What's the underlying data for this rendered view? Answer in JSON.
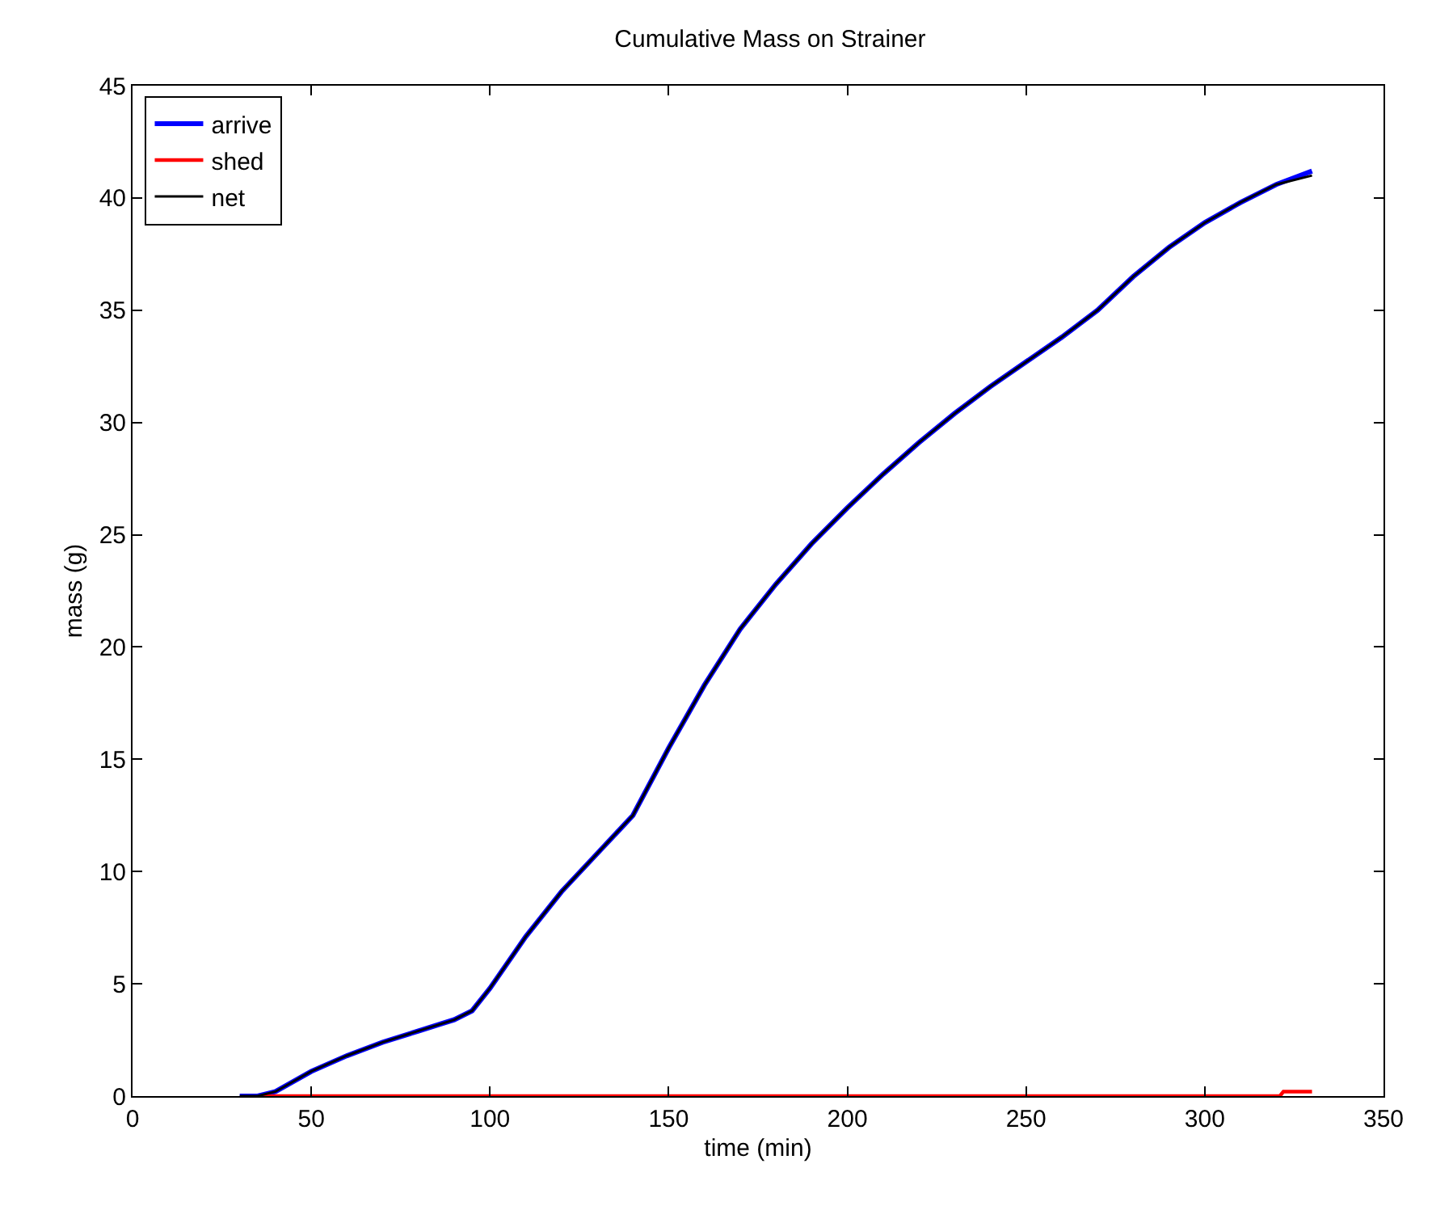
{
  "chart_data": {
    "type": "line",
    "title": "Cumulative Mass on Strainer",
    "xlabel": "time (min)",
    "ylabel": "mass (g)",
    "xlim": [
      0,
      350
    ],
    "xticks": [
      0,
      50,
      100,
      150,
      200,
      250,
      300,
      350
    ],
    "ylim": [
      0,
      45
    ],
    "yticks": [
      0,
      5,
      10,
      15,
      20,
      25,
      30,
      35,
      40,
      45
    ],
    "grid": false,
    "legend": "top left",
    "marker": "none",
    "line_style": "solid",
    "series": [
      {
        "name": "arrive",
        "color": "#0000ff",
        "x": [
          30,
          35,
          40,
          50,
          60,
          70,
          80,
          90,
          95,
          100,
          110,
          120,
          130,
          140,
          150,
          160,
          170,
          180,
          190,
          200,
          210,
          220,
          230,
          240,
          250,
          260,
          265,
          270,
          280,
          290,
          300,
          310,
          320,
          330
        ],
        "values": [
          0,
          0,
          0.2,
          1.1,
          1.8,
          2.4,
          2.9,
          3.4,
          3.8,
          4.8,
          7.1,
          9.1,
          10.8,
          12.5,
          15.5,
          18.3,
          20.8,
          22.8,
          24.6,
          26.2,
          27.7,
          29.1,
          30.4,
          31.6,
          32.7,
          33.8,
          34.4,
          35.0,
          36.5,
          37.8,
          38.9,
          39.8,
          40.6,
          41.2
        ]
      },
      {
        "name": "shed",
        "color": "#ff0000",
        "x": [
          36,
          321,
          322,
          330
        ],
        "values": [
          0,
          0,
          0.2,
          0.2
        ]
      },
      {
        "name": "net",
        "color": "#000000",
        "x": [
          30,
          35,
          40,
          50,
          60,
          70,
          80,
          90,
          95,
          100,
          110,
          120,
          130,
          140,
          150,
          160,
          170,
          180,
          190,
          200,
          210,
          220,
          230,
          240,
          250,
          260,
          265,
          270,
          280,
          290,
          300,
          310,
          320,
          330
        ],
        "values": [
          0,
          0,
          0.2,
          1.1,
          1.8,
          2.4,
          2.9,
          3.4,
          3.8,
          4.8,
          7.1,
          9.1,
          10.8,
          12.5,
          15.5,
          18.3,
          20.8,
          22.8,
          24.6,
          26.2,
          27.7,
          29.1,
          30.4,
          31.6,
          32.7,
          33.8,
          34.4,
          35.0,
          36.5,
          37.8,
          38.9,
          39.8,
          40.6,
          41.0
        ]
      }
    ]
  }
}
